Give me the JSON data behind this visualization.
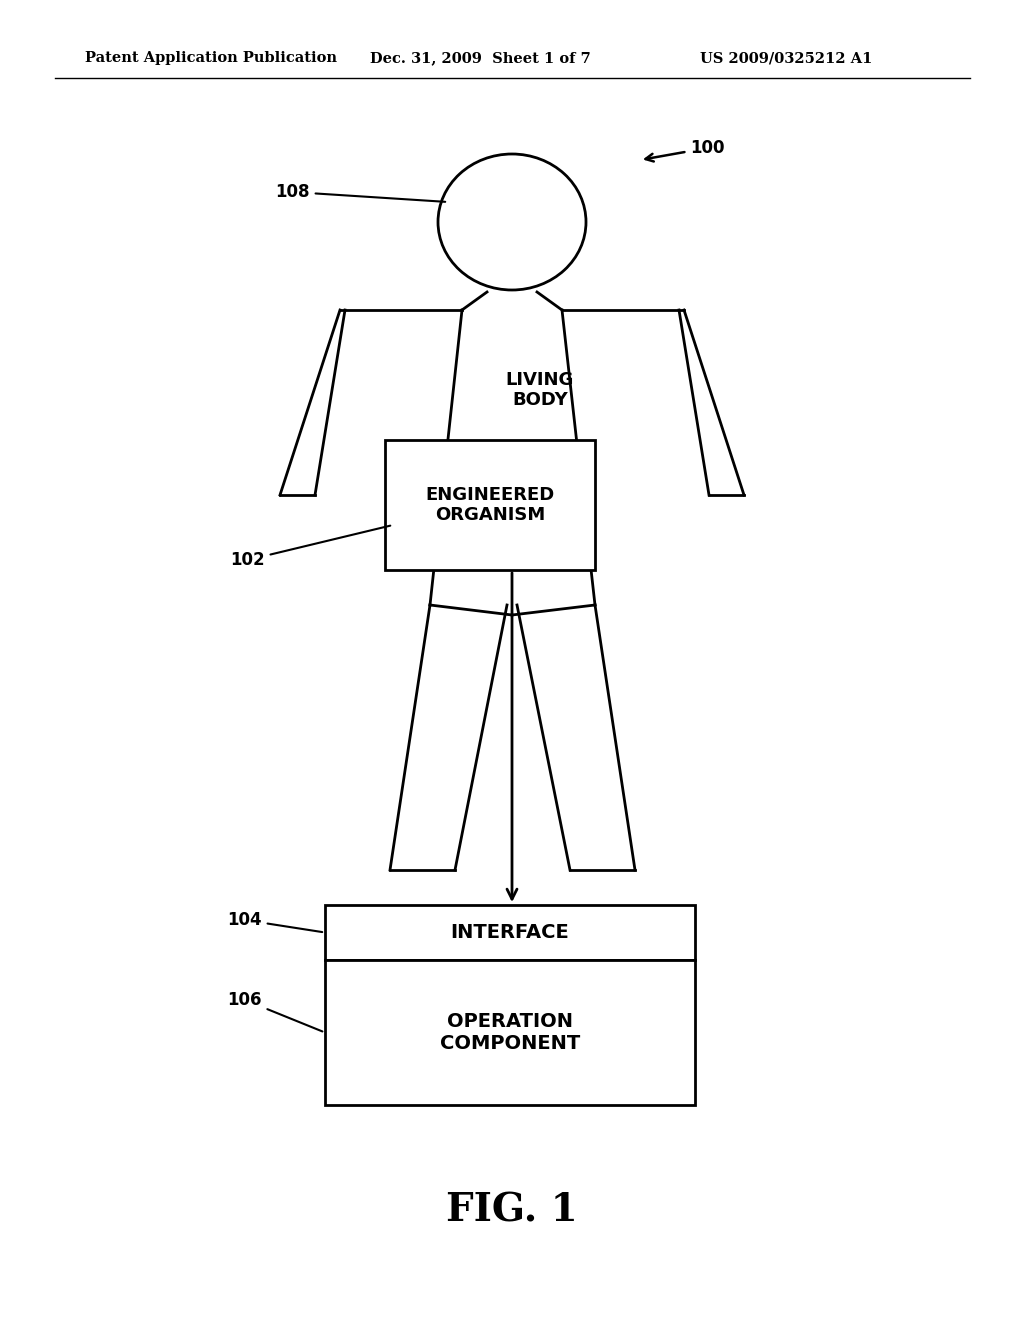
{
  "bg_color": "#ffffff",
  "line_color": "#000000",
  "header_left": "Patent Application Publication",
  "header_mid": "Dec. 31, 2009  Sheet 1 of 7",
  "header_right": "US 2009/0325212 A1",
  "fig_label": "FIG. 1",
  "living_body_text": "LIVING\nBODY",
  "engineered_text": "ENGINEERED\nORGANISM",
  "interface_text": "INTERFACE",
  "operation_text": "OPERATION\nCOMPONENT"
}
